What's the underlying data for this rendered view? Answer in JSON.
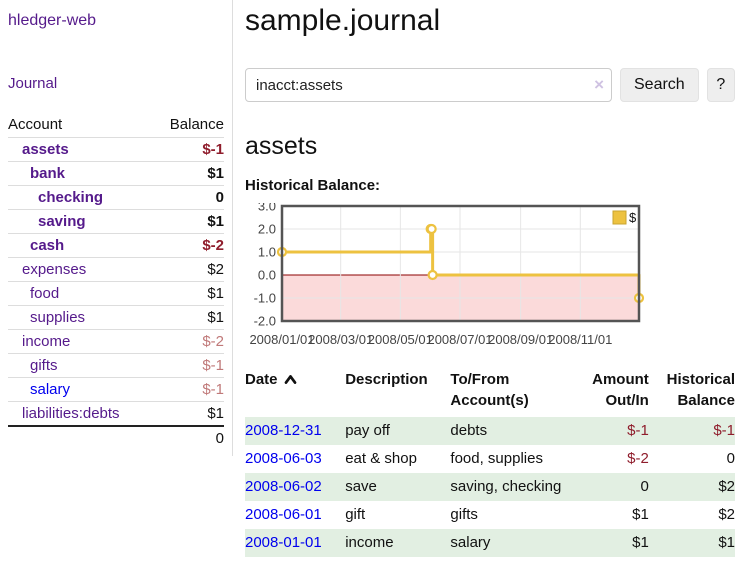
{
  "app": {
    "brand": "hledger-web"
  },
  "sidebar": {
    "journal_link": "Journal",
    "accounts": {
      "headers": {
        "account": "Account",
        "balance": "Balance"
      },
      "rows": [
        {
          "name": "assets",
          "depth": 1,
          "bold": true,
          "balance": "$-1",
          "balance_class": "neg-strong",
          "link_class": ""
        },
        {
          "name": "bank",
          "depth": 2,
          "bold": true,
          "balance": "$1",
          "balance_class": "",
          "link_class": ""
        },
        {
          "name": "checking",
          "depth": 3,
          "bold": true,
          "balance": "0",
          "balance_class": "",
          "link_class": ""
        },
        {
          "name": "saving",
          "depth": 3,
          "bold": true,
          "balance": "$1",
          "balance_class": "",
          "link_class": ""
        },
        {
          "name": "cash",
          "depth": 2,
          "bold": true,
          "balance": "$-2",
          "balance_class": "neg-strong",
          "link_class": ""
        },
        {
          "name": "expenses",
          "depth": 1,
          "bold": false,
          "balance": "$2",
          "balance_class": "",
          "link_class": ""
        },
        {
          "name": "food",
          "depth": 2,
          "bold": false,
          "balance": "$1",
          "balance_class": "",
          "link_class": ""
        },
        {
          "name": "supplies",
          "depth": 2,
          "bold": false,
          "balance": "$1",
          "balance_class": "",
          "link_class": ""
        },
        {
          "name": "income",
          "depth": 1,
          "bold": false,
          "balance": "$-2",
          "balance_class": "neg-soft",
          "link_class": ""
        },
        {
          "name": "gifts",
          "depth": 2,
          "bold": false,
          "balance": "$-1",
          "balance_class": "neg-soft",
          "link_class": ""
        },
        {
          "name": "salary",
          "depth": 2,
          "bold": false,
          "balance": "$-1",
          "balance_class": "neg-soft",
          "link_class": "blue"
        },
        {
          "name": "liabilities:debts",
          "depth": 1,
          "bold": false,
          "balance": "$1",
          "balance_class": "",
          "link_class": ""
        }
      ],
      "total": "0"
    }
  },
  "main": {
    "title": "sample.journal",
    "search": {
      "value": "inacct:assets",
      "clear_icon": "×",
      "search_button": "Search",
      "help_button": "?"
    },
    "account_heading": "assets",
    "chart_title": "Historical Balance:"
  },
  "chart_data": {
    "type": "line",
    "step": true,
    "title": "Historical Balance:",
    "legend": [
      {
        "label": "$",
        "color": "#edc240"
      }
    ],
    "legend_position": "top-right",
    "x_type": "date",
    "x_range": [
      "2008-01-01",
      "2008-12-31"
    ],
    "x_ticks": [
      {
        "date": "2008-01-01",
        "label": "2008/01/01"
      },
      {
        "date": "2008-03-01",
        "label": "2008/03/01"
      },
      {
        "date": "2008-05-01",
        "label": "2008/05/01"
      },
      {
        "date": "2008-07-01",
        "label": "2008/07/01"
      },
      {
        "date": "2008-09-01",
        "label": "2008/09/01"
      },
      {
        "date": "2008-11-01",
        "label": "2008/11/01"
      }
    ],
    "ylim": [
      -2,
      3
    ],
    "y_ticks": [
      {
        "value": 3,
        "label": "3.0"
      },
      {
        "value": 2,
        "label": "2.0"
      },
      {
        "value": 1,
        "label": "1.0"
      },
      {
        "value": 0,
        "label": "0.0"
      },
      {
        "value": -1,
        "label": "-1.0"
      },
      {
        "value": -2,
        "label": "-2.0"
      }
    ],
    "series": [
      {
        "name": "$",
        "color": "#edc240",
        "points": [
          [
            "2008-01-01",
            1
          ],
          [
            "2008-06-01",
            2
          ],
          [
            "2008-06-02",
            2
          ],
          [
            "2008-06-03",
            0
          ],
          [
            "2008-12-31",
            -1
          ]
        ]
      }
    ],
    "grid": true,
    "gridline_color": "#e6e6e6",
    "zero_line_color": "#8b0000",
    "negative_region_color": "#fbdada",
    "border_color": "#545454"
  },
  "register": {
    "headers": [
      {
        "line1": "Date",
        "line2": "",
        "align": "left",
        "sorted": "asc"
      },
      {
        "line1": "Description",
        "line2": "",
        "align": "left",
        "sorted": ""
      },
      {
        "line1": "To/From",
        "line2": "Account(s)",
        "align": "left",
        "sorted": ""
      },
      {
        "line1": "Amount",
        "line2": "Out/In",
        "align": "right",
        "sorted": ""
      },
      {
        "line1": "Historical",
        "line2": "Balance",
        "align": "right",
        "sorted": ""
      }
    ],
    "rows": [
      {
        "date": "2008-12-31",
        "description": "pay off",
        "accounts": "debts",
        "amount": "$-1",
        "amount_negative": true,
        "balance": "$-1",
        "balance_negative": true,
        "shaded": true
      },
      {
        "date": "2008-06-03",
        "description": "eat & shop",
        "accounts": "food, supplies",
        "amount": "$-2",
        "amount_negative": true,
        "balance": "0",
        "balance_negative": false,
        "shaded": false
      },
      {
        "date": "2008-06-02",
        "description": "save",
        "accounts": "saving, checking",
        "amount": "0",
        "amount_negative": false,
        "balance": "$2",
        "balance_negative": false,
        "shaded": true
      },
      {
        "date": "2008-06-01",
        "description": "gift",
        "accounts": "gifts",
        "amount": "$1",
        "amount_negative": false,
        "balance": "$2",
        "balance_negative": false,
        "shaded": false
      },
      {
        "date": "2008-01-01",
        "description": "income",
        "accounts": "salary",
        "amount": "$1",
        "amount_negative": false,
        "balance": "$1",
        "balance_negative": false,
        "shaded": true
      }
    ]
  },
  "colors": {
    "link_purple": "#551a8b",
    "link_blue": "#0000ee",
    "negative_strong": "#8f1d2c",
    "negative_soft": "#c07979",
    "row_stripe_green": "#e2efe2",
    "series_yellow": "#edc240"
  }
}
